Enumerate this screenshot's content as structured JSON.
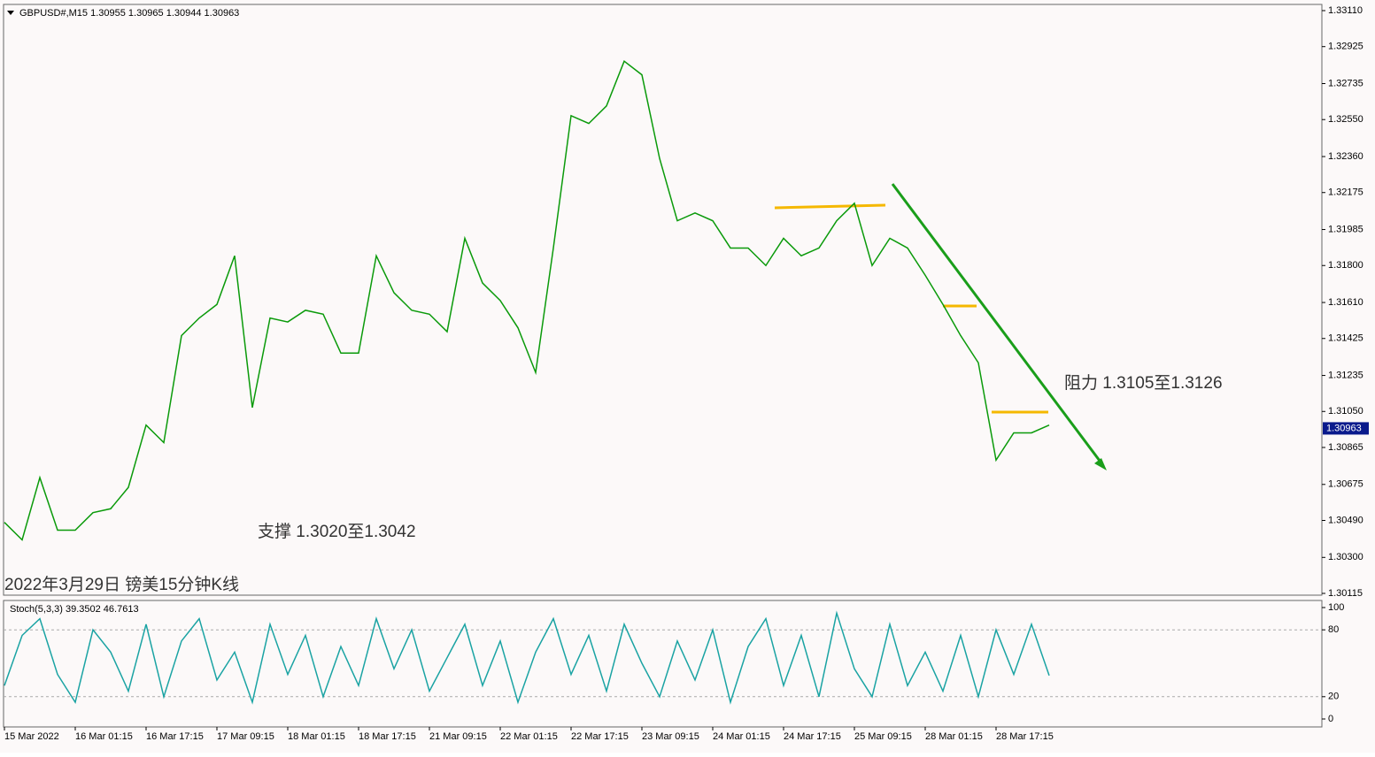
{
  "chart_data": [
    {
      "type": "line",
      "header": "GBPUSD#,M15  1.30955 1.30965 1.30944 1.30963",
      "annotations": [
        "阻力 1.3105至1.3126",
        "支撑 1.3020至1.3042",
        "2022年3月29日 镑美15分钟K线"
      ],
      "categories": [
        "15 Mar 2022",
        null,
        null,
        null,
        "16 Mar 01:15",
        null,
        null,
        null,
        "16 Mar 17:15",
        null,
        null,
        null,
        "17 Mar 09:15",
        null,
        null,
        null,
        "18 Mar 01:15",
        null,
        null,
        null,
        "18 Mar 17:15",
        null,
        null,
        null,
        "21 Mar 09:15",
        null,
        null,
        null,
        "22 Mar 01:15",
        null,
        null,
        null,
        "22 Mar 17:15",
        null,
        null,
        null,
        "23 Mar 09:15",
        null,
        null,
        null,
        "24 Mar 01:15",
        null,
        null,
        null,
        "24 Mar 17:15",
        null,
        null,
        null,
        "25 Mar 09:15",
        null,
        null,
        null,
        "28 Mar 01:15",
        null,
        null,
        null,
        "28 Mar 17:15",
        null,
        null,
        null
      ],
      "values": [
        1.3048,
        1.3039,
        1.3071,
        1.3044,
        1.3044,
        1.3053,
        1.3055,
        1.3066,
        1.3098,
        1.3089,
        1.3144,
        1.3153,
        1.316,
        1.3185,
        1.3107,
        1.3153,
        1.3151,
        1.3157,
        1.3155,
        1.3135,
        1.3135,
        1.3185,
        1.3166,
        1.3157,
        1.3155,
        1.3146,
        1.3194,
        1.3171,
        1.3162,
        1.3148,
        1.3125,
        1.3189,
        1.3257,
        1.3253,
        1.3262,
        1.3285,
        1.3278,
        1.3235,
        1.3203,
        1.3207,
        1.3203,
        1.3189,
        1.3189,
        1.318,
        1.3194,
        1.3185,
        1.3189,
        1.3203,
        1.3212,
        1.318,
        1.3194,
        1.3189,
        1.3175,
        1.316,
        1.3144,
        1.313,
        1.308,
        1.3094,
        1.3094,
        1.3098
      ],
      "color": "#0a9a0a",
      "current_price": {
        "value": 1.30963,
        "label": "1.30963"
      },
      "ylim": [
        1.30115,
        1.3311
      ],
      "yticks": [
        {
          "value": 1.3311,
          "label": "1.33110"
        },
        {
          "value": 1.32925,
          "label": "1.32925"
        },
        {
          "value": 1.32735,
          "label": "1.32735"
        },
        {
          "value": 1.3255,
          "label": "1.32550"
        },
        {
          "value": 1.3236,
          "label": "1.32360"
        },
        {
          "value": 1.32175,
          "label": "1.32175"
        },
        {
          "value": 1.31985,
          "label": "1.31985"
        },
        {
          "value": 1.318,
          "label": "1.31800"
        },
        {
          "value": 1.3161,
          "label": "1.31610"
        },
        {
          "value": 1.31425,
          "label": "1.31425"
        },
        {
          "value": 1.31235,
          "label": "1.31235"
        },
        {
          "value": 1.3105,
          "label": "1.31050"
        },
        {
          "value": 1.30865,
          "label": "1.30865"
        },
        {
          "value": 1.30675,
          "label": "1.30675"
        },
        {
          "value": 1.3049,
          "label": "1.30490"
        },
        {
          "value": 1.303,
          "label": "1.30300"
        },
        {
          "value": 1.30115,
          "label": "1.30115"
        }
      ]
    },
    {
      "type": "line",
      "title": "Stoch(5,3,3) 39.3502 46.7613",
      "values": [
        30,
        75,
        90,
        40,
        15,
        80,
        60,
        25,
        85,
        20,
        70,
        90,
        35,
        60,
        15,
        85,
        40,
        75,
        20,
        65,
        30,
        90,
        45,
        80,
        25,
        55,
        85,
        30,
        70,
        15,
        60,
        90,
        40,
        75,
        25,
        85,
        50,
        20,
        70,
        35,
        80,
        15,
        65,
        90,
        30,
        75,
        20,
        95,
        45,
        20,
        85,
        30,
        60,
        25,
        75,
        20,
        80,
        40,
        85,
        39
      ],
      "color": "#1aa3a3",
      "ylim": [
        0,
        100
      ],
      "yticks": [
        0,
        20,
        80,
        100
      ]
    }
  ]
}
